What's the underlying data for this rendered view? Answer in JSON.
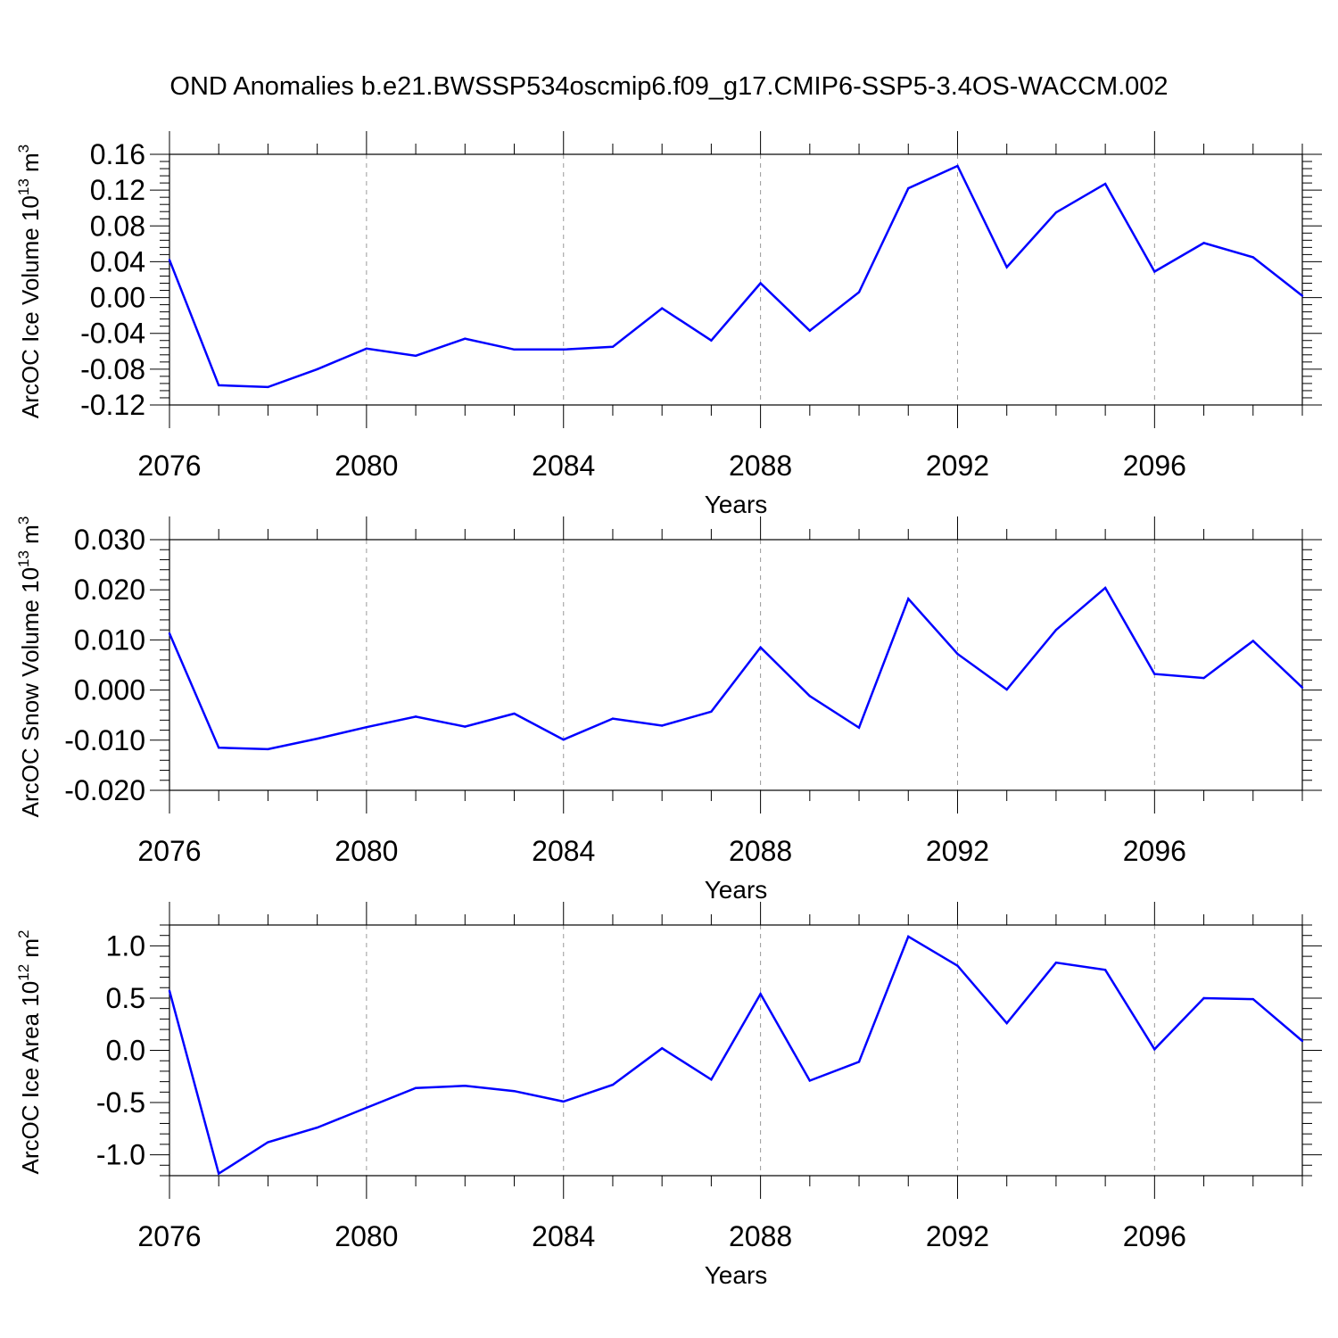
{
  "title": "OND Anomalies b.e21.BWSSP534oscmip6.f09_g17.CMIP6-SSP5-3.4OS-WACCM.002",
  "line_color": "#0000ff",
  "chart_data": [
    {
      "type": "line",
      "ylabel": {
        "main": "ArcOC Ice Volume 10",
        "exp": "13",
        "unit": " m",
        "unit_exp": "3"
      },
      "xlabel": "Years",
      "xlim": [
        2076,
        2099
      ],
      "ylim": [
        -0.12,
        0.16
      ],
      "x_ticks": [
        2076,
        2080,
        2084,
        2088,
        2092,
        2096
      ],
      "y_ticks": [
        "-0.12",
        "-0.08",
        "-0.04",
        "0.00",
        "0.04",
        "0.08",
        "0.12",
        "0.16"
      ],
      "grid": "vertical-dashed",
      "x": [
        2076,
        2077,
        2078,
        2079,
        2080,
        2081,
        2082,
        2083,
        2084,
        2085,
        2086,
        2087,
        2088,
        2089,
        2090,
        2091,
        2092,
        2093,
        2094,
        2095,
        2096,
        2097,
        2098,
        2099
      ],
      "values": [
        0.042,
        -0.098,
        -0.1,
        -0.08,
        -0.057,
        -0.065,
        -0.046,
        -0.058,
        -0.058,
        -0.055,
        -0.012,
        -0.048,
        0.016,
        -0.037,
        0.006,
        0.122,
        0.147,
        0.034,
        0.095,
        0.127,
        0.029,
        0.061,
        0.045,
        0.002
      ]
    },
    {
      "type": "line",
      "ylabel": {
        "main": "ArcOC Snow Volume 10",
        "exp": "13",
        "unit": " m",
        "unit_exp": "3"
      },
      "xlabel": "Years",
      "xlim": [
        2076,
        2099
      ],
      "ylim": [
        -0.02,
        0.03
      ],
      "x_ticks": [
        2076,
        2080,
        2084,
        2088,
        2092,
        2096
      ],
      "y_ticks": [
        "-0.020",
        "-0.010",
        "0.000",
        "0.010",
        "0.020",
        "0.030"
      ],
      "grid": "vertical-dashed",
      "x": [
        2076,
        2077,
        2078,
        2079,
        2080,
        2081,
        2082,
        2083,
        2084,
        2085,
        2086,
        2087,
        2088,
        2089,
        2090,
        2091,
        2092,
        2093,
        2094,
        2095,
        2096,
        2097,
        2098,
        2099
      ],
      "values": [
        0.0113,
        -0.0115,
        -0.0118,
        -0.0097,
        -0.0074,
        -0.0053,
        -0.0073,
        -0.0047,
        -0.0099,
        -0.0057,
        -0.0071,
        -0.0043,
        0.0085,
        -0.0012,
        -0.0075,
        0.0182,
        0.0072,
        0.0001,
        0.012,
        0.0204,
        0.0032,
        0.0024,
        0.0098,
        0.0005
      ]
    },
    {
      "type": "line",
      "ylabel": {
        "main": "ArcOC Ice Area 10",
        "exp": "12",
        "unit": " m",
        "unit_exp": "2"
      },
      "xlabel": "Years",
      "xlim": [
        2076,
        2099
      ],
      "ylim": [
        -1.2,
        1.2
      ],
      "x_ticks": [
        2076,
        2080,
        2084,
        2088,
        2092,
        2096
      ],
      "y_ticks": [
        "-1.0",
        "-0.5",
        "0.0",
        "0.5",
        "1.0"
      ],
      "grid": "vertical-dashed",
      "x": [
        2076,
        2077,
        2078,
        2079,
        2080,
        2081,
        2082,
        2083,
        2084,
        2085,
        2086,
        2087,
        2088,
        2089,
        2090,
        2091,
        2092,
        2093,
        2094,
        2095,
        2096,
        2097,
        2098,
        2099
      ],
      "values": [
        0.57,
        -1.18,
        -0.88,
        -0.74,
        -0.55,
        -0.36,
        -0.34,
        -0.39,
        -0.49,
        -0.33,
        0.02,
        -0.28,
        0.54,
        -0.29,
        -0.11,
        1.09,
        0.81,
        0.26,
        0.84,
        0.77,
        0.01,
        0.5,
        0.49,
        0.09
      ]
    }
  ]
}
